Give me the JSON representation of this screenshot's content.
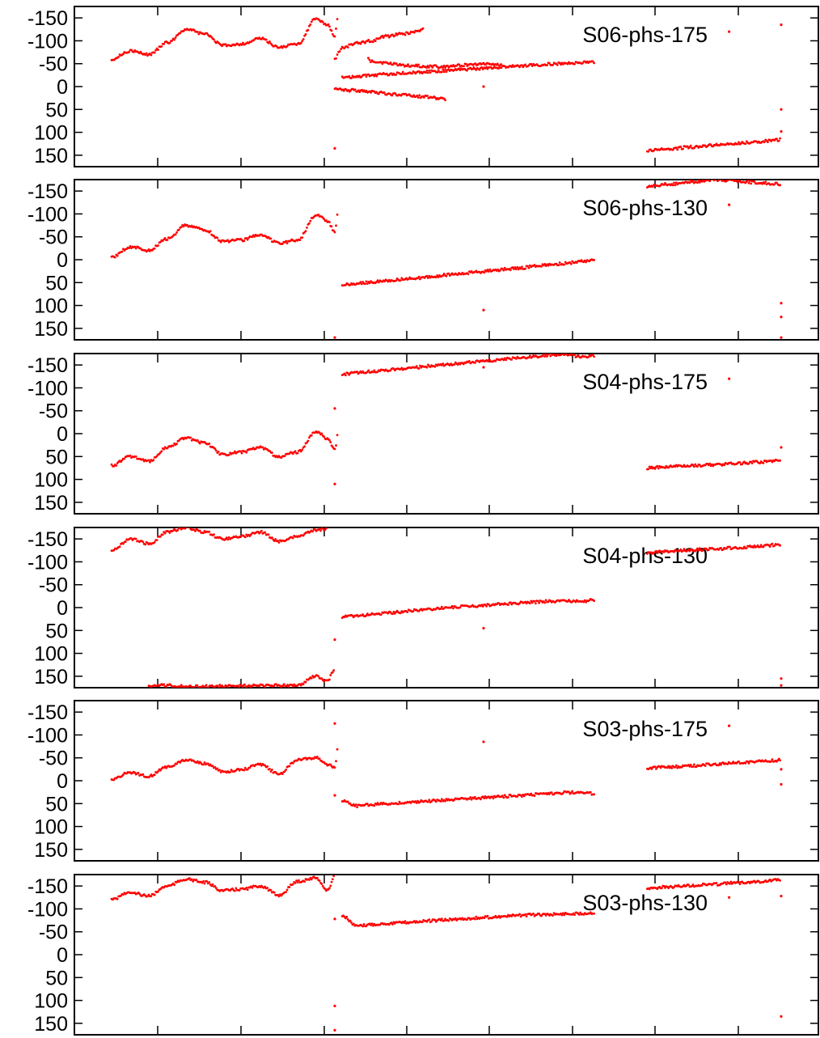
{
  "chart_data": [
    {
      "type": "scatter",
      "panel_label": "S06-phs-175",
      "yticks": [
        "-150",
        "-100",
        "-50",
        "0",
        "50",
        "100",
        "150"
      ],
      "ylim": [
        175,
        -175
      ],
      "xlim": [
        0,
        1
      ],
      "marker_color": "#ff0000",
      "grid": false,
      "series": [
        {
          "x": [
            0.05,
            0.075,
            0.1,
            0.125,
            0.15,
            0.175,
            0.2,
            0.225,
            0.25,
            0.275,
            0.3,
            0.325,
            0.34,
            0.35,
            0.355
          ],
          "y": [
            -60,
            -78,
            -70,
            -96,
            -125,
            -115,
            -90,
            -93,
            -105,
            -86,
            -93,
            -148,
            -135,
            -111,
            -163
          ]
        },
        {
          "x": [
            0.35,
            0.355,
            0.36,
            0.38,
            0.4,
            0.42,
            0.44,
            0.46,
            0.47
          ],
          "y": [
            -60,
            -75,
            -85,
            -95,
            -100,
            -110,
            -115,
            -120,
            -125
          ]
        },
        {
          "x": [
            0.395,
            0.4,
            0.425,
            0.45,
            0.475,
            0.5,
            0.525,
            0.55,
            0.575
          ],
          "y": [
            -60,
            -55,
            -50,
            -46,
            -44,
            -44,
            -47,
            -50,
            -48
          ]
        },
        {
          "x": [
            0.35,
            0.37,
            0.4,
            0.43,
            0.47,
            0.5
          ],
          "y": [
            5,
            8,
            12,
            17,
            22,
            27
          ]
        },
        {
          "x": [
            0.36,
            0.38,
            0.4,
            0.42,
            0.44,
            0.46,
            0.48,
            0.5,
            0.52,
            0.54,
            0.56,
            0.58,
            0.6,
            0.62,
            0.64,
            0.66,
            0.68,
            0.7
          ],
          "y": [
            -20,
            -22,
            -25,
            -27,
            -29,
            -31,
            -33,
            -35,
            -37,
            -39,
            -41,
            -43,
            -45,
            -47,
            -49,
            -51,
            -52,
            -53
          ]
        },
        {
          "x": [
            0.77,
            0.8,
            0.83,
            0.86,
            0.89,
            0.92,
            0.95
          ],
          "y": [
            140,
            136,
            132,
            128,
            124,
            120,
            116
          ]
        },
        {
          "x": [
            0.35,
            0.55,
            0.88,
            0.95,
            0.95,
            0.95
          ],
          "y": [
            135,
            0,
            -120,
            -135,
            50,
            98
          ]
        }
      ]
    },
    {
      "type": "scatter",
      "panel_label": "S06-phs-130",
      "yticks": [
        "-150",
        "-100",
        "-50",
        "0",
        "50",
        "100",
        "150"
      ],
      "ylim": [
        175,
        -175
      ],
      "xlim": [
        0,
        1
      ],
      "marker_color": "#ff0000",
      "grid": false,
      "series": [
        {
          "x": [
            0.05,
            0.075,
            0.1,
            0.125,
            0.15,
            0.175,
            0.2,
            0.225,
            0.25,
            0.275,
            0.3,
            0.325,
            0.34,
            0.35,
            0.355
          ],
          "y": [
            -5,
            -28,
            -20,
            -46,
            -75,
            -65,
            -40,
            -43,
            -55,
            -36,
            -43,
            -98,
            -85,
            -61,
            -113
          ]
        },
        {
          "x": [
            0.36,
            0.38,
            0.4,
            0.42,
            0.44,
            0.46,
            0.48,
            0.5,
            0.52,
            0.54,
            0.56,
            0.58,
            0.6,
            0.62,
            0.64,
            0.66,
            0.68,
            0.7
          ],
          "y": [
            55,
            52,
            49,
            46,
            43,
            40,
            37,
            33,
            30,
            27,
            24,
            21,
            18,
            14,
            11,
            8,
            4,
            0
          ]
        },
        {
          "x": [
            0.77,
            0.8,
            0.83,
            0.86,
            0.89,
            0.92,
            0.95
          ],
          "y": [
            -160,
            -165,
            -170,
            -175,
            -172,
            -168,
            -165
          ]
        },
        {
          "x": [
            0.35,
            0.55,
            0.88,
            0.95,
            0.95,
            0.95
          ],
          "y": [
            170,
            110,
            -120,
            95,
            125,
            170
          ]
        }
      ]
    },
    {
      "type": "scatter",
      "panel_label": "S04-phs-175",
      "yticks": [
        "-150",
        "-100",
        "-50",
        "0",
        "50",
        "100",
        "150"
      ],
      "ylim": [
        175,
        -175
      ],
      "xlim": [
        0,
        1
      ],
      "marker_color": "#ff0000",
      "grid": false,
      "series": [
        {
          "x": [
            0.05,
            0.075,
            0.1,
            0.125,
            0.15,
            0.175,
            0.2,
            0.225,
            0.25,
            0.275,
            0.3,
            0.325,
            0.34,
            0.35,
            0.355
          ],
          "y": [
            70,
            50,
            60,
            30,
            10,
            20,
            45,
            40,
            30,
            50,
            40,
            -5,
            10,
            35,
            -10
          ]
        },
        {
          "x": [
            0.36,
            0.38,
            0.4,
            0.42,
            0.44,
            0.46,
            0.48,
            0.5,
            0.52,
            0.54,
            0.56,
            0.58,
            0.6,
            0.62,
            0.64,
            0.66,
            0.68,
            0.7
          ],
          "y": [
            -130,
            -133,
            -136,
            -139,
            -142,
            -145,
            -148,
            -151,
            -154,
            -157,
            -160,
            -163,
            -166,
            -169,
            -172,
            -174,
            -168,
            -170
          ]
        },
        {
          "x": [
            0.77,
            0.8,
            0.83,
            0.86,
            0.89,
            0.92,
            0.95
          ],
          "y": [
            75,
            72,
            70,
            68,
            65,
            62,
            58
          ]
        },
        {
          "x": [
            0.35,
            0.35,
            0.55,
            0.88,
            0.95
          ],
          "y": [
            -55,
            110,
            -145,
            -120,
            30
          ]
        }
      ]
    },
    {
      "type": "scatter",
      "panel_label": "S04-phs-130",
      "yticks": [
        "-150",
        "-100",
        "-50",
        "0",
        "50",
        "100",
        "150"
      ],
      "ylim": [
        175,
        -175
      ],
      "xlim": [
        0,
        1
      ],
      "marker_color": "#ff0000",
      "grid": false,
      "series": [
        {
          "x": [
            0.05,
            0.075,
            0.1,
            0.125,
            0.15,
            0.175,
            0.2,
            0.225,
            0.25,
            0.275,
            0.3,
            0.325,
            0.34
          ],
          "y": [
            -125,
            -150,
            -140,
            -165,
            -175,
            -165,
            -150,
            -155,
            -165,
            -145,
            -155,
            -170,
            -172
          ]
        },
        {
          "x": [
            0.1,
            0.125,
            0.15,
            0.3,
            0.325,
            0.34,
            0.35
          ],
          "y": [
            170,
            170,
            172,
            170,
            150,
            160,
            135
          ]
        },
        {
          "x": [
            0.36,
            0.38,
            0.4,
            0.42,
            0.44,
            0.46,
            0.48,
            0.5,
            0.52,
            0.54,
            0.56,
            0.58,
            0.6,
            0.62,
            0.64,
            0.66,
            0.68,
            0.7
          ],
          "y": [
            20,
            18,
            15,
            12,
            9,
            6,
            3,
            0,
            -2,
            -4,
            -6,
            -8,
            -10,
            -12,
            -14,
            -15,
            -13,
            -17
          ]
        },
        {
          "x": [
            0.77,
            0.8,
            0.83,
            0.86,
            0.89,
            0.92,
            0.95
          ],
          "y": [
            -120,
            -123,
            -126,
            -128,
            -131,
            -134,
            -138
          ]
        },
        {
          "x": [
            0.35,
            0.55,
            0.95,
            0.95
          ],
          "y": [
            70,
            45,
            155,
            170
          ]
        }
      ]
    },
    {
      "type": "scatter",
      "panel_label": "S03-phs-175",
      "yticks": [
        "-150",
        "-100",
        "-50",
        "0",
        "50",
        "100",
        "150"
      ],
      "ylim": [
        175,
        -175
      ],
      "xlim": [
        0,
        1
      ],
      "marker_color": "#ff0000",
      "grid": false,
      "series": [
        {
          "x": [
            0.05,
            0.075,
            0.1,
            0.125,
            0.15,
            0.175,
            0.2,
            0.225,
            0.25,
            0.275,
            0.3,
            0.325,
            0.34,
            0.35,
            0.355
          ],
          "y": [
            -2,
            -18,
            -10,
            -30,
            -45,
            -38,
            -20,
            -25,
            -35,
            -15,
            -45,
            -50,
            -35,
            -30,
            -80
          ]
        },
        {
          "x": [
            0.36,
            0.38,
            0.4,
            0.42,
            0.44,
            0.46,
            0.48,
            0.5,
            0.52,
            0.54,
            0.56,
            0.58,
            0.6,
            0.62,
            0.64,
            0.66,
            0.68,
            0.7
          ],
          "y": [
            45,
            55,
            52,
            50,
            48,
            46,
            44,
            42,
            40,
            38,
            36,
            34,
            32,
            30,
            28,
            26,
            25,
            28
          ]
        },
        {
          "x": [
            0.77,
            0.8,
            0.83,
            0.86,
            0.89,
            0.92,
            0.95
          ],
          "y": [
            -28,
            -30,
            -33,
            -36,
            -39,
            -42,
            -45
          ]
        },
        {
          "x": [
            0.35,
            0.35,
            0.55,
            0.88,
            0.95,
            0.95
          ],
          "y": [
            -125,
            32,
            -85,
            -120,
            -25,
            8
          ]
        }
      ]
    },
    {
      "type": "scatter",
      "panel_label": "S03-phs-130",
      "yticks": [
        "-150",
        "-100",
        "-50",
        "0",
        "50",
        "100",
        "150"
      ],
      "ylim": [
        175,
        -175
      ],
      "xlim": [
        0,
        1
      ],
      "marker_color": "#ff0000",
      "grid": false,
      "series": [
        {
          "x": [
            0.05,
            0.075,
            0.1,
            0.125,
            0.15,
            0.175,
            0.2,
            0.225,
            0.25,
            0.275,
            0.3,
            0.325,
            0.34,
            0.35
          ],
          "y": [
            -120,
            -137,
            -128,
            -150,
            -165,
            -158,
            -140,
            -143,
            -150,
            -130,
            -160,
            -168,
            -140,
            -172
          ]
        },
        {
          "x": [
            0.36,
            0.38,
            0.4,
            0.42,
            0.44,
            0.46,
            0.48,
            0.5,
            0.52,
            0.54,
            0.56,
            0.58,
            0.6,
            0.62,
            0.64,
            0.66,
            0.68,
            0.7
          ],
          "y": [
            -85,
            -62,
            -66,
            -68,
            -70,
            -72,
            -74,
            -76,
            -78,
            -80,
            -82,
            -84,
            -86,
            -87,
            -88,
            -89,
            -90,
            -92
          ]
        },
        {
          "x": [
            0.77,
            0.8,
            0.83,
            0.86,
            0.89,
            0.92,
            0.95
          ],
          "y": [
            -145,
            -148,
            -151,
            -154,
            -157,
            -160,
            -164
          ]
        },
        {
          "x": [
            0.35,
            0.35,
            0.35,
            0.88,
            0.95,
            0.95
          ],
          "y": [
            -78,
            112,
            165,
            -125,
            -128,
            135
          ]
        }
      ]
    }
  ]
}
